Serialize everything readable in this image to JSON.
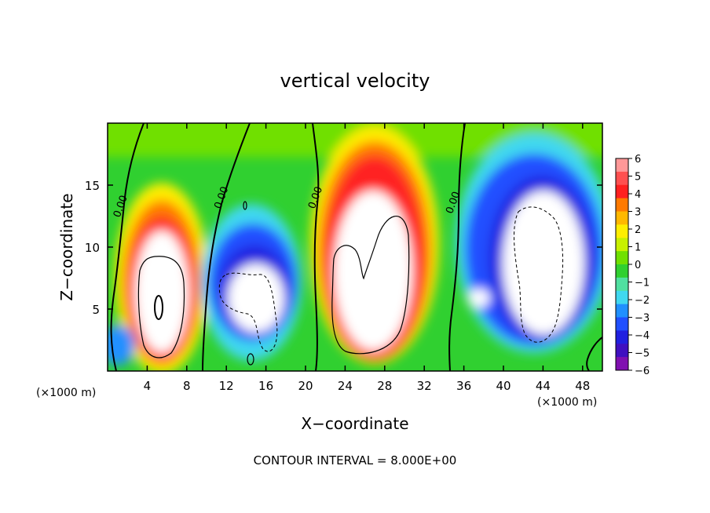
{
  "chart_data": {
    "type": "heatmap",
    "title": "vertical velocity",
    "xlabel": "X−coordinate",
    "ylabel": "Z−coordinate",
    "x_unit_left": "(×1000 m)",
    "x_unit_right": "(×1000 m)",
    "footer": "CONTOUR INTERVAL = 8.000E+00",
    "xlim": [
      0,
      50
    ],
    "ylim": [
      0,
      20
    ],
    "xticks": [
      4,
      8,
      12,
      16,
      20,
      24,
      28,
      32,
      36,
      40,
      44,
      48
    ],
    "xtick_labels": [
      "4",
      "8",
      "12",
      "16",
      "20",
      "24",
      "28",
      "32",
      "36",
      "40",
      "44",
      "48"
    ],
    "yticks": [
      5,
      10,
      15
    ],
    "ytick_labels": [
      "5",
      "10",
      "15"
    ],
    "zero_contour_labels": [
      {
        "text": "0.00",
        "x": 1.6,
        "y": 13.2
      },
      {
        "text": "0.00",
        "x": 11.8,
        "y": 13.9
      },
      {
        "text": "0.00",
        "x": 21.3,
        "y": 13.9
      },
      {
        "text": "0.00",
        "x": 35.2,
        "y": 13.5
      }
    ],
    "colorbar": {
      "labels": [
        "6",
        "5",
        "4",
        "3",
        "2",
        "1",
        "0",
        "−1",
        "−2",
        "−3",
        "−4",
        "−5",
        "−6"
      ],
      "colors": [
        "#ff9898",
        "#ff5050",
        "#ff2020",
        "#ff7a00",
        "#ffb800",
        "#ffee00",
        "#c8f000",
        "#70e000",
        "#30d030",
        "#50e0a0",
        "#40d8f0",
        "#2090ff",
        "#2050ff",
        "#2020e0",
        "#4010c0",
        "#8010b0"
      ]
    },
    "cells": [
      {
        "x": 5.5,
        "z": 6.5,
        "sign": "positive",
        "rx": 4.0,
        "rz": 13.0
      },
      {
        "x": 15.0,
        "z": 6.0,
        "sign": "negative",
        "rx": 4.5,
        "rz": 9.0
      },
      {
        "x": 27.5,
        "z": 8.5,
        "sign": "positive",
        "rx": 5.5,
        "rz": 17.0
      },
      {
        "x": 43.0,
        "z": 7.5,
        "sign": "negative",
        "rx": 5.5,
        "rz": 15.0
      }
    ]
  }
}
